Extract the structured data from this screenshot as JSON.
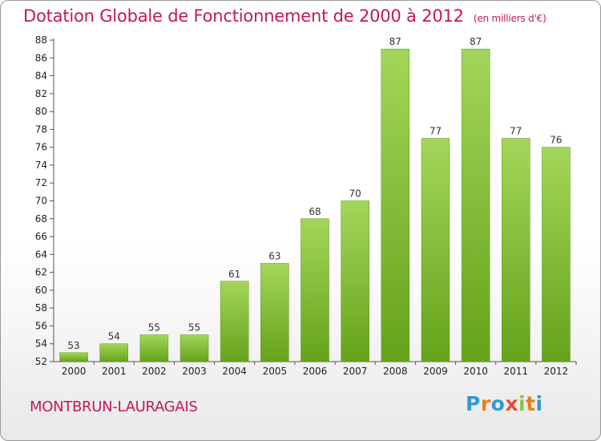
{
  "header": {
    "title": "Dotation Globale de Fonctionnement de 2000 à 2012",
    "unit": "(en milliers d'€)"
  },
  "footer": {
    "commune": "MONTBRUN-LAURAGAIS",
    "logo": "Proxiti"
  },
  "colors": {
    "title": "#c2185b",
    "bar_light": "#a3d65a",
    "bar_dark": "#66a21a",
    "logo_letters": [
      "#2e9bd6",
      "#e67e22",
      "#2e9bd6",
      "#e74c3c",
      "#8bc34a",
      "#e67e22",
      "#2e9bd6"
    ]
  },
  "chart_data": {
    "type": "bar",
    "title": "Dotation Globale de Fonctionnement de 2000 à 2012",
    "subtitle": "(en milliers d'€)",
    "xlabel": "",
    "ylabel": "",
    "categories": [
      "2000",
      "2001",
      "2002",
      "2003",
      "2004",
      "2005",
      "2006",
      "2007",
      "2008",
      "2009",
      "2010",
      "2011",
      "2012"
    ],
    "values": [
      53,
      54,
      55,
      55,
      61,
      63,
      68,
      70,
      87,
      77,
      87,
      77,
      76
    ],
    "ylim": [
      52,
      88
    ],
    "yticks": [
      52,
      54,
      56,
      58,
      60,
      62,
      64,
      66,
      68,
      70,
      72,
      74,
      76,
      78,
      80,
      82,
      84,
      86,
      88
    ],
    "grid": false,
    "legend": "none"
  }
}
